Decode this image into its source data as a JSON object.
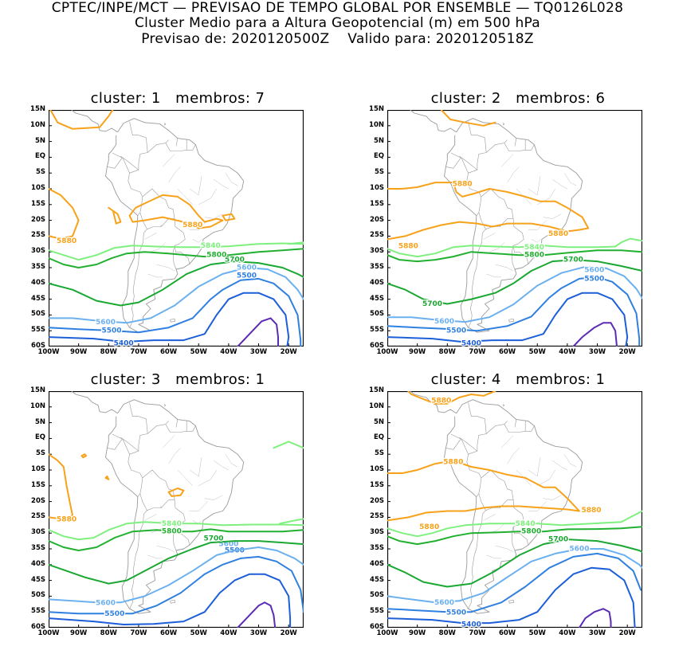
{
  "header": {
    "line1": "CPTEC/INPE/MCT — PREVISAO DE TEMPO GLOBAL POR ENSEMBLE — TQ0126L028",
    "line2": "Cluster Medio para a Altura Geopotencial (m) em 500 hPa",
    "line3": "Previsao de: 2020120500Z    Valido para: 2020120518Z"
  },
  "axes": {
    "lat_labels": [
      "15N",
      "10N",
      "5N",
      "EQ",
      "5S",
      "10S",
      "15S",
      "20S",
      "25S",
      "30S",
      "35S",
      "40S",
      "45S",
      "50S",
      "55S",
      "60S"
    ],
    "lon_labels": [
      "100W",
      "90W",
      "80W",
      "70W",
      "60W",
      "50W",
      "40W",
      "30W",
      "20W"
    ]
  },
  "contour_levels": [
    "5400",
    "5500",
    "5600",
    "5700",
    "5800",
    "5840",
    "5880"
  ],
  "colors": {
    "c5400": "#1c5fd8",
    "c5500": "#2f80e0",
    "c5600": "#6bb0ef",
    "c5700": "#1aa832",
    "c5800": "#22b030",
    "c5840": "#7ff07f",
    "c5880": "#f7a21a",
    "c5300": "#5b2bb5",
    "coast": "#9a9a9a"
  },
  "panels": [
    {
      "title": "cluster: 1   membros: 7"
    },
    {
      "title": "cluster: 2   membros: 6"
    },
    {
      "title": "cluster: 3   membros: 1"
    },
    {
      "title": "cluster: 4   membros: 1"
    }
  ]
}
